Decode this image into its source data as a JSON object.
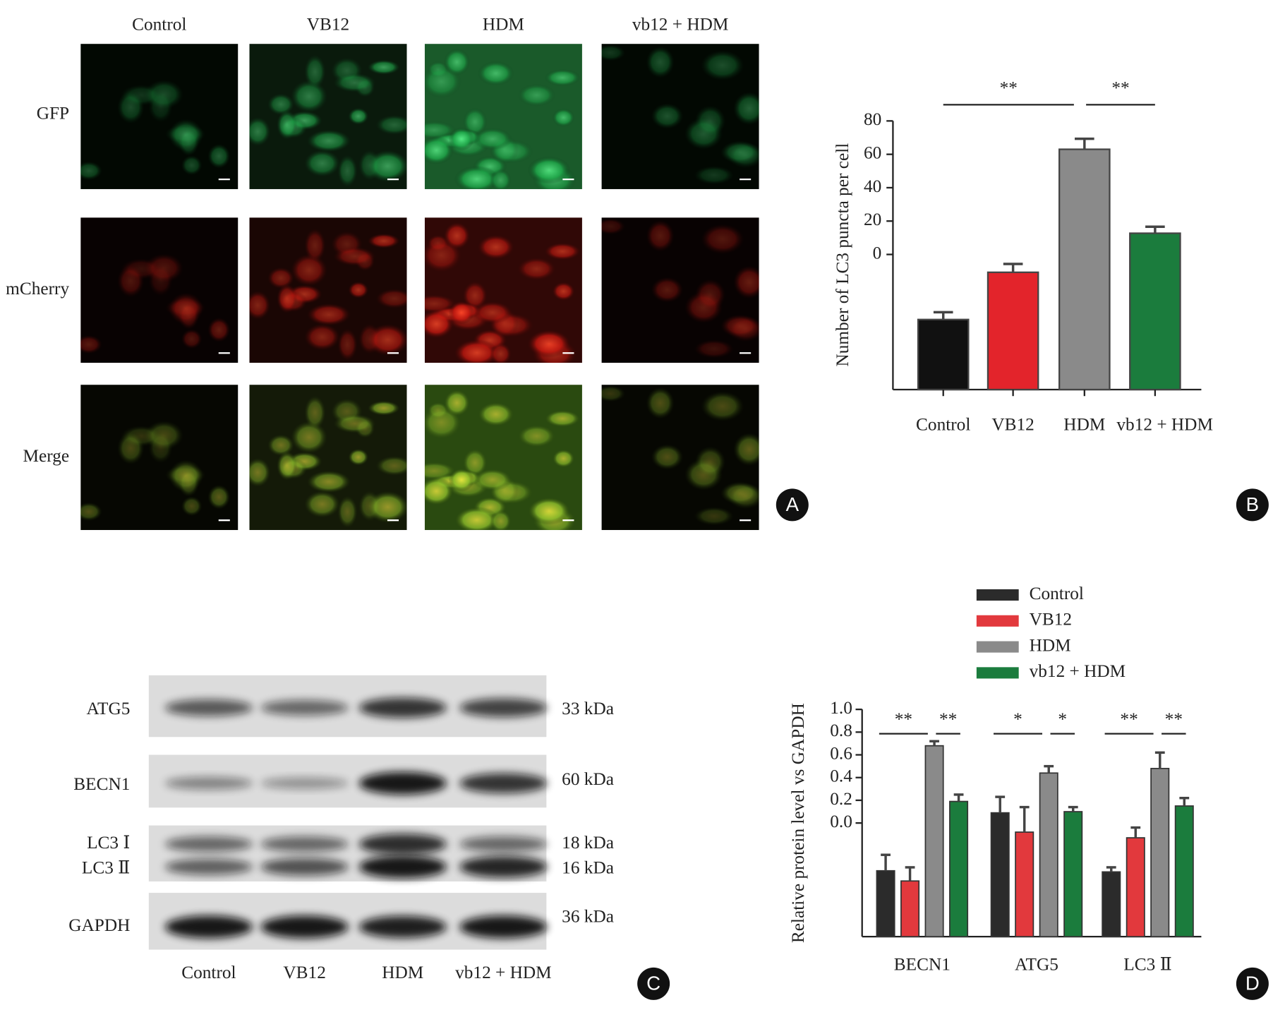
{
  "panel_a": {
    "letter": "A",
    "columns": [
      "Control",
      "VB12",
      "HDM",
      "vb12 + HDM"
    ],
    "rows": [
      "GFP",
      "mCherry",
      "Merge"
    ]
  },
  "chart_data": [
    {
      "type": "bar",
      "letter": "B",
      "y_label": "Number of LC3 puncta per cell",
      "categories": [
        "Control",
        "VB12",
        "HDM",
        "vb12 + HDM"
      ],
      "values": [
        -39,
        -10.7,
        63,
        12.7
      ],
      "errors": [
        4.4,
        5,
        6.3,
        3.9
      ],
      "colors": [
        "#111111",
        "#e3242b",
        "#8a8a8a",
        "#1b7c3d"
      ],
      "ylim": [
        -80,
        80
      ],
      "yticks": [
        0,
        20,
        40,
        60,
        80
      ],
      "comparisons": [
        {
          "label": "**",
          "between": [
            "Control",
            "HDM"
          ]
        },
        {
          "label": "**",
          "between": [
            "HDM",
            "vb12 + HDM"
          ]
        }
      ]
    },
    {
      "type": "grouped_bar",
      "letter": "D",
      "y_label": "Relative protein level vs GAPDH",
      "categories": [
        "BECN1",
        "ATG5",
        "LC3 Ⅱ"
      ],
      "series": [
        {
          "name": "Control",
          "color": "#2b2b2b",
          "values": [
            -0.42,
            0.09,
            -0.43
          ],
          "errors": [
            0.14,
            0.14,
            0.04
          ]
        },
        {
          "name": "VB12",
          "color": "#e2393d",
          "values": [
            -0.51,
            -0.08,
            -0.13
          ],
          "errors": [
            0.12,
            0.22,
            0.09
          ]
        },
        {
          "name": "HDM",
          "color": "#8a8a8a",
          "values": [
            0.68,
            0.44,
            0.48
          ],
          "errors": [
            0.04,
            0.06,
            0.14
          ]
        },
        {
          "name": "vb12 + HDM",
          "color": "#1b7c3d",
          "values": [
            0.19,
            0.1,
            0.15
          ],
          "errors": [
            0.06,
            0.04,
            0.07
          ]
        }
      ],
      "ylim": [
        -1,
        1
      ],
      "yticks": [
        {
          "value": 0,
          "label": "0.0"
        },
        0.2,
        0.4,
        0.6,
        0.8,
        {
          "value": 1,
          "label": "1.0"
        }
      ],
      "comparisons": [
        {
          "category": "BECN1",
          "label": "**",
          "between": [
            "Control",
            "HDM"
          ]
        },
        {
          "category": "BECN1",
          "label": "**",
          "between": [
            "HDM",
            "vb12 + HDM"
          ]
        },
        {
          "category": "ATG5",
          "label": "*",
          "between": [
            "Control",
            "HDM"
          ]
        },
        {
          "category": "ATG5",
          "label": "*",
          "between": [
            "HDM",
            "vb12 + HDM"
          ]
        },
        {
          "category": "LC3 Ⅱ",
          "label": "**",
          "between": [
            "Control",
            "HDM"
          ]
        },
        {
          "category": "LC3 Ⅱ",
          "label": "**",
          "between": [
            "HDM",
            "vb12 + HDM"
          ]
        }
      ],
      "legend": "top"
    }
  ],
  "panel_c": {
    "letter": "C",
    "lanes": [
      "Control",
      "VB12",
      "HDM",
      "vb12 + HDM"
    ],
    "rows": [
      {
        "protein": "ATG5",
        "size": "33 kDa"
      },
      {
        "protein": "BECN1",
        "size": "60 kDa"
      },
      {
        "protein": "LC3 Ⅰ",
        "size": "18 kDa"
      },
      {
        "protein": "LC3 Ⅱ",
        "size": "16 kDa"
      },
      {
        "protein": "GAPDH",
        "size": "36 kDa"
      }
    ]
  }
}
